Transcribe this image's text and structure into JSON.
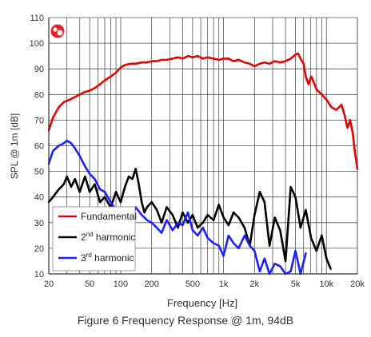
{
  "caption": "Figure 6 Frequency Response @ 1m, 94dB",
  "chart_data": {
    "type": "line",
    "xlabel": "Frequency [Hz]",
    "ylabel": "SPL @ 1m [dB]",
    "xscale": "log",
    "xlim": [
      20,
      20000
    ],
    "ylim": [
      10,
      110
    ],
    "grid": true,
    "legend_position": "bottom-left",
    "x_ticks": [
      20,
      50,
      100,
      200,
      500,
      1000,
      2000,
      5000,
      10000,
      20000
    ],
    "x_tick_labels": [
      "20",
      "50",
      "100",
      "200",
      "500",
      "1k",
      "2k",
      "5k",
      "10k",
      "20k"
    ],
    "y_ticks": [
      10,
      20,
      30,
      40,
      50,
      60,
      70,
      80,
      90,
      100,
      110
    ],
    "y_tick_labels": [
      "10",
      "20",
      "30",
      "40",
      "50",
      "60",
      "70",
      "80",
      "90",
      "100",
      "110"
    ],
    "logo_icon": "speaker-logo-icon",
    "series": [
      {
        "name": "Fundamental",
        "label_base": "Fundamental",
        "label_sup": "",
        "label_rest": "",
        "color": "#e00000",
        "x": [
          20,
          22,
          25,
          28,
          32,
          36,
          40,
          45,
          50,
          56,
          63,
          70,
          80,
          90,
          100,
          110,
          125,
          140,
          160,
          180,
          200,
          225,
          250,
          280,
          320,
          360,
          400,
          450,
          500,
          560,
          630,
          700,
          800,
          900,
          1000,
          1120,
          1250,
          1400,
          1600,
          1800,
          2000,
          2250,
          2500,
          2800,
          3150,
          3550,
          4000,
          4500,
          5000,
          5300,
          5600,
          6000,
          6300,
          6700,
          7100,
          7500,
          8000,
          9000,
          10000,
          11200,
          12500,
          14000,
          15000,
          16000,
          17000,
          18000,
          19000,
          20000
        ],
        "y": [
          66,
          71,
          75,
          77,
          78,
          79,
          80,
          81,
          81.5,
          82.5,
          84,
          85.5,
          87,
          88.5,
          90.5,
          91.5,
          92,
          92,
          92.5,
          92.5,
          93,
          93,
          93.5,
          93.5,
          94,
          94.5,
          94,
          95,
          94.5,
          95,
          94,
          94.5,
          94,
          93.5,
          94,
          94,
          93,
          93.5,
          92.5,
          92,
          91,
          92,
          92.5,
          92,
          93,
          92.5,
          93,
          94,
          95.5,
          96,
          94,
          92,
          87,
          84,
          87,
          85,
          82,
          80,
          78,
          75,
          74,
          76,
          72,
          67,
          70,
          65,
          57,
          51
        ]
      },
      {
        "name": "2nd harmonic",
        "label_base": "2",
        "label_sup": "nd",
        "label_rest": " harmonic",
        "color": "#000000",
        "x": [
          20,
          22,
          25,
          28,
          30,
          33,
          36,
          40,
          45,
          50,
          56,
          63,
          70,
          80,
          90,
          100,
          110,
          120,
          130,
          140,
          150,
          160,
          170,
          180,
          200,
          225,
          250,
          280,
          320,
          360,
          400,
          450,
          500,
          560,
          630,
          700,
          800,
          900,
          1000,
          1120,
          1250,
          1400,
          1600,
          1800,
          2000,
          2250,
          2500,
          2800,
          3150,
          3550,
          4000,
          4500,
          5000,
          5600,
          6300,
          7100,
          8000,
          9000,
          10000,
          11000
        ],
        "y": [
          38,
          40,
          43,
          45,
          48,
          44,
          47,
          42,
          48,
          42,
          45,
          38,
          40,
          36,
          42,
          38,
          44,
          48,
          47,
          51,
          45,
          38,
          34,
          36,
          38,
          35,
          30,
          36,
          33,
          28,
          34,
          30,
          33,
          28,
          30,
          33,
          31,
          37,
          32,
          29,
          34,
          32,
          28,
          21,
          33,
          42,
          38,
          21,
          32,
          27,
          15,
          44,
          40,
          28,
          35,
          24,
          19,
          25,
          16,
          12
        ]
      },
      {
        "name": "3rd harmonic",
        "label_base": "3",
        "label_sup": "rd",
        "label_rest": " harmonic",
        "color": "#2020ff",
        "x": [
          20,
          22,
          25,
          28,
          30,
          33,
          36,
          40,
          45,
          50,
          56,
          63,
          70,
          80,
          90,
          100,
          110,
          125,
          140,
          160,
          180,
          200,
          225,
          250,
          280,
          320,
          360,
          400,
          450,
          500,
          560,
          630,
          700,
          800,
          900,
          1000,
          1120,
          1250,
          1400,
          1600,
          1800,
          2000,
          2250,
          2500,
          2800,
          3150,
          3550,
          4000,
          4500,
          5000,
          5600,
          6300
        ],
        "y": [
          53,
          58,
          60,
          61,
          62,
          61,
          59,
          56,
          52,
          49,
          47,
          43,
          42,
          38,
          35,
          33,
          34,
          30,
          36,
          33,
          31,
          30,
          28,
          26,
          31,
          27,
          30,
          29,
          34,
          27,
          25,
          28,
          24,
          22,
          21,
          17,
          25,
          22,
          20,
          25,
          21,
          19,
          11,
          16,
          10,
          14,
          13,
          10,
          11,
          19,
          10,
          18
        ]
      }
    ]
  }
}
